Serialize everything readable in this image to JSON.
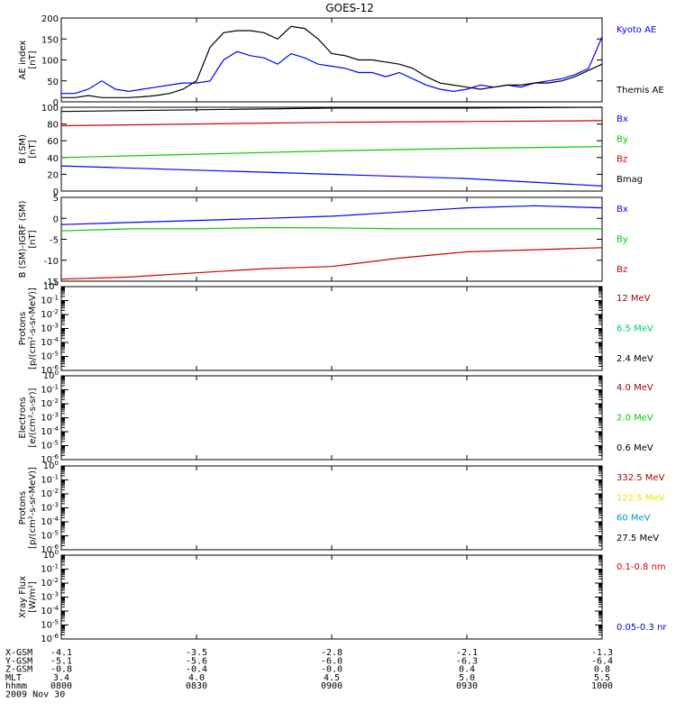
{
  "title": "GOES-12",
  "date": "2009 Nov 30",
  "x_tick_labels": [
    "0800",
    "0830",
    "0900",
    "0930",
    "1000"
  ],
  "ephemeris": {
    "rows": [
      {
        "label": "X-GSM",
        "values": [
          "-4.1",
          "-3.5",
          "-2.8",
          "-2.1",
          "-1.3"
        ]
      },
      {
        "label": "Y-GSM",
        "values": [
          "-5.1",
          "-5.6",
          "-6.0",
          "-6.3",
          "-6.4"
        ]
      },
      {
        "label": "Z-GSM",
        "values": [
          "-0.8",
          "-0.4",
          "-0.0",
          "0.4",
          "0.8"
        ]
      },
      {
        "label": "MLT",
        "values": [
          "3.4",
          "4.0",
          "4.5",
          "5.0",
          "5.5"
        ]
      },
      {
        "label": "hhmm",
        "values": [
          "0800",
          "0830",
          "0900",
          "0930",
          "1000"
        ]
      }
    ]
  },
  "chart_data": [
    {
      "type": "line",
      "ylabel": [
        "AE index",
        "[nT]"
      ],
      "ylim": [
        0,
        200
      ],
      "yticks": [
        0,
        50,
        100,
        150,
        200
      ],
      "x": [
        "08:00",
        "08:03",
        "08:06",
        "08:09",
        "08:12",
        "08:15",
        "08:18",
        "08:21",
        "08:24",
        "08:27",
        "08:30",
        "08:33",
        "08:36",
        "08:39",
        "08:42",
        "08:45",
        "08:48",
        "08:51",
        "08:54",
        "08:57",
        "09:00",
        "09:03",
        "09:06",
        "09:09",
        "09:12",
        "09:15",
        "09:18",
        "09:21",
        "09:24",
        "09:27",
        "09:30",
        "09:33",
        "09:36",
        "09:39",
        "09:42",
        "09:45",
        "09:48",
        "09:51",
        "09:54",
        "09:57",
        "10:00"
      ],
      "series": [
        {
          "name": "Kyoto AE",
          "color": "#0000ff",
          "values": [
            20,
            20,
            30,
            50,
            30,
            25,
            30,
            35,
            40,
            45,
            45,
            50,
            100,
            120,
            110,
            105,
            90,
            115,
            105,
            90,
            85,
            80,
            70,
            70,
            60,
            70,
            55,
            40,
            30,
            25,
            30,
            40,
            35,
            40,
            35,
            45,
            50,
            55,
            65,
            80,
            155
          ]
        },
        {
          "name": "Themis AE",
          "color": "#000000",
          "values": [
            10,
            10,
            15,
            10,
            10,
            10,
            12,
            15,
            20,
            30,
            50,
            130,
            165,
            170,
            170,
            165,
            150,
            180,
            175,
            150,
            115,
            110,
            100,
            100,
            95,
            90,
            80,
            60,
            45,
            40,
            35,
            30,
            35,
            40,
            40,
            45,
            45,
            50,
            60,
            75,
            90
          ]
        }
      ]
    },
    {
      "type": "line",
      "ylabel": [
        "B (SM)",
        "[nT]"
      ],
      "ylim": [
        0,
        100
      ],
      "yticks": [
        0,
        20,
        40,
        60,
        80,
        100
      ],
      "x": [
        "08:00",
        "08:30",
        "09:00",
        "09:30",
        "10:00"
      ],
      "series": [
        {
          "name": "Bx",
          "color": "#0000ff",
          "values": [
            30,
            25,
            20,
            15,
            6
          ]
        },
        {
          "name": "By",
          "color": "#00cc00",
          "values": [
            40,
            44,
            48,
            51,
            53
          ]
        },
        {
          "name": "Bz",
          "color": "#cc0000",
          "values": [
            78,
            80,
            82,
            83,
            84
          ]
        },
        {
          "name": "Bmag",
          "color": "#000000",
          "values": [
            95,
            97,
            99,
            99,
            100
          ]
        }
      ]
    },
    {
      "type": "line",
      "ylabel": [
        "B (SM)-IGRF (SM)",
        "[nT]"
      ],
      "ylim": [
        -15,
        5
      ],
      "yticks": [
        -15,
        -10,
        -5,
        0,
        5
      ],
      "x": [
        "08:00",
        "08:15",
        "08:30",
        "08:45",
        "09:00",
        "09:15",
        "09:30",
        "09:45",
        "10:00"
      ],
      "series": [
        {
          "name": "Bx",
          "color": "#0000ff",
          "values": [
            -1.5,
            -1.0,
            -0.5,
            0.0,
            0.5,
            1.5,
            2.5,
            3.0,
            2.5
          ]
        },
        {
          "name": "By",
          "color": "#00cc00",
          "values": [
            -3.0,
            -2.5,
            -2.5,
            -2.2,
            -2.3,
            -2.5,
            -2.5,
            -2.5,
            -2.5
          ]
        },
        {
          "name": "Bz",
          "color": "#cc0000",
          "values": [
            -14.5,
            -14.0,
            -13.0,
            -12.0,
            -11.5,
            -9.5,
            -8.0,
            -7.5,
            -7.0
          ]
        }
      ]
    },
    {
      "type": "line",
      "ylabel": [
        "Protons",
        "[p/(cm²-s-sr-MeV)]"
      ],
      "yscale": "log",
      "ylim_exp": [
        -6,
        0
      ],
      "yticks_exp": [
        0,
        -1,
        -2,
        -3,
        -4,
        -5,
        -6
      ],
      "series": [
        {
          "name": "12 MeV",
          "color": "#990000",
          "values": []
        },
        {
          "name": "6.5 MeV",
          "color": "#00cc66",
          "values": []
        },
        {
          "name": "2.4 MeV",
          "color": "#000000",
          "values": []
        }
      ]
    },
    {
      "type": "line",
      "ylabel": [
        "Electrons",
        "[e/(cm²-s-sr)]"
      ],
      "yscale": "log",
      "ylim_exp": [
        -6,
        0
      ],
      "yticks_exp": [
        0,
        -1,
        -2,
        -3,
        -4,
        -5,
        -6
      ],
      "series": [
        {
          "name": "4.0 MeV",
          "color": "#990000",
          "values": []
        },
        {
          "name": "2.0 MeV",
          "color": "#00cc00",
          "values": []
        },
        {
          "name": "0.6 MeV",
          "color": "#000000",
          "values": []
        }
      ]
    },
    {
      "type": "line",
      "ylabel": [
        "Protons",
        "[p/(cm²-s-sr-MeV)]"
      ],
      "yscale": "log",
      "ylim_exp": [
        -6,
        0
      ],
      "yticks_exp": [
        0,
        -1,
        -2,
        -3,
        -4,
        -5,
        -6
      ],
      "series": [
        {
          "name": "332.5 MeV",
          "color": "#990000",
          "values": []
        },
        {
          "name": "122.5 MeV",
          "color": "#e6e600",
          "values": []
        },
        {
          "name": "60 MeV",
          "color": "#0099cc",
          "values": []
        },
        {
          "name": "27.5 MeV",
          "color": "#000000",
          "values": []
        }
      ]
    },
    {
      "type": "line",
      "ylabel": [
        "Xray Flux",
        "[W/m²]"
      ],
      "yscale": "log",
      "ylim_exp": [
        -6,
        0
      ],
      "yticks_exp": [
        0,
        -1,
        -2,
        -3,
        -4,
        -5,
        -6
      ],
      "series": [
        {
          "name": "0.1-0.8 nm",
          "color": "#cc0000",
          "values": []
        },
        {
          "name": "0.05-0.3 nr",
          "color": "#0000cc",
          "values": []
        }
      ]
    }
  ]
}
